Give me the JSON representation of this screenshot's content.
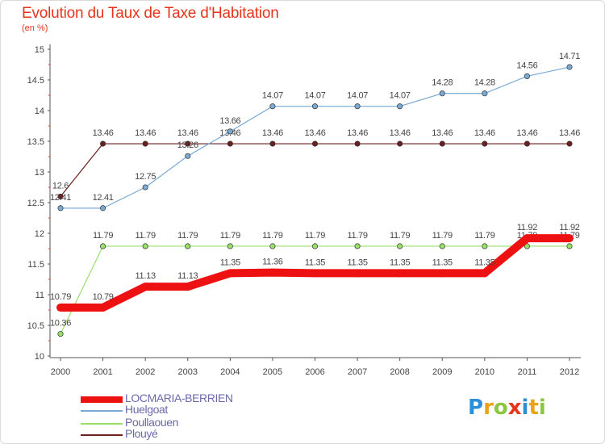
{
  "header": {
    "title": "Evolution du Taux de Taxe d'Habitation",
    "unit": "(en %)"
  },
  "logo": {
    "text": "Proxiti",
    "letters": [
      {
        "ch": "P",
        "color": "#2f8fd6"
      },
      {
        "ch": "r",
        "color": "#e8a317"
      },
      {
        "ch": "o",
        "color": "#8cc63f"
      },
      {
        "ch": "x",
        "color": "#e4361c"
      },
      {
        "ch": "i",
        "color": "#2f8fd6"
      },
      {
        "ch": "t",
        "color": "#e8a317"
      },
      {
        "ch": "i",
        "color": "#8cc63f"
      }
    ]
  },
  "chart_data": {
    "type": "line",
    "title": "Evolution du Taux de Taxe d'Habitation",
    "ylabel": "(en %)",
    "xlabel": "",
    "x": [
      "2000",
      "2001",
      "2002",
      "2003",
      "2004",
      "2005",
      "2006",
      "2007",
      "2008",
      "2009",
      "2010",
      "2011",
      "2012"
    ],
    "ylim": [
      10,
      15
    ],
    "yticks": [
      "10",
      "10.5",
      "11",
      "11.5",
      "12",
      "12.5",
      "13",
      "13.5",
      "14",
      "14.5",
      "15"
    ],
    "grid": false,
    "legend": "bottom-left",
    "series": [
      {
        "name": "Plouyé",
        "color": "#6b1f1f",
        "thick": false,
        "values": [
          12.6,
          13.46,
          13.46,
          13.46,
          13.46,
          13.46,
          13.46,
          13.46,
          13.46,
          13.46,
          13.46,
          13.46,
          13.46
        ],
        "labels": [
          "12.6",
          "13.46",
          "13.46",
          "13.46",
          "13.46",
          "13.46",
          "13.46",
          "13.46",
          "13.46",
          "13.46",
          "13.46",
          "13.46",
          "13.46"
        ]
      },
      {
        "name": "Huelgoat",
        "color": "#7aaad4",
        "thick": false,
        "values": [
          12.41,
          12.41,
          12.75,
          13.26,
          13.66,
          14.07,
          14.07,
          14.07,
          14.07,
          14.28,
          14.28,
          14.56,
          14.71
        ],
        "labels": [
          "12.41",
          "12.41",
          "12.75",
          "13.26",
          "13.66",
          "14.07",
          "14.07",
          "14.07",
          "14.07",
          "14.28",
          "14.28",
          "14.56",
          "14.71"
        ]
      },
      {
        "name": "Poullaouen",
        "color": "#99e06a",
        "thick": false,
        "values": [
          10.36,
          11.79,
          11.79,
          11.79,
          11.79,
          11.79,
          11.79,
          11.79,
          11.79,
          11.79,
          11.79,
          11.79,
          11.79
        ],
        "labels": [
          "10.36",
          "11.79",
          "11.79",
          "11.79",
          "11.79",
          "11.79",
          "11.79",
          "11.79",
          "11.79",
          "11.79",
          "11.79",
          "11.79",
          "11.79"
        ]
      },
      {
        "name": "LOCMARIA-BERRIEN",
        "color": "#ee1111",
        "thick": true,
        "values": [
          10.79,
          10.79,
          11.13,
          11.13,
          11.35,
          11.36,
          11.35,
          11.35,
          11.35,
          11.35,
          11.35,
          11.92,
          11.92
        ],
        "labels": [
          "10.79",
          "10.79",
          "11.13",
          "11.13",
          "11.35",
          "11.36",
          "11.35",
          "11.35",
          "11.35",
          "11.35",
          "11.35",
          "11.92",
          "11.92"
        ]
      }
    ],
    "legend_entries": [
      "LOCMARIA-BERRIEN",
      "Huelgoat",
      "Poullaouen",
      "Plouyé"
    ]
  }
}
